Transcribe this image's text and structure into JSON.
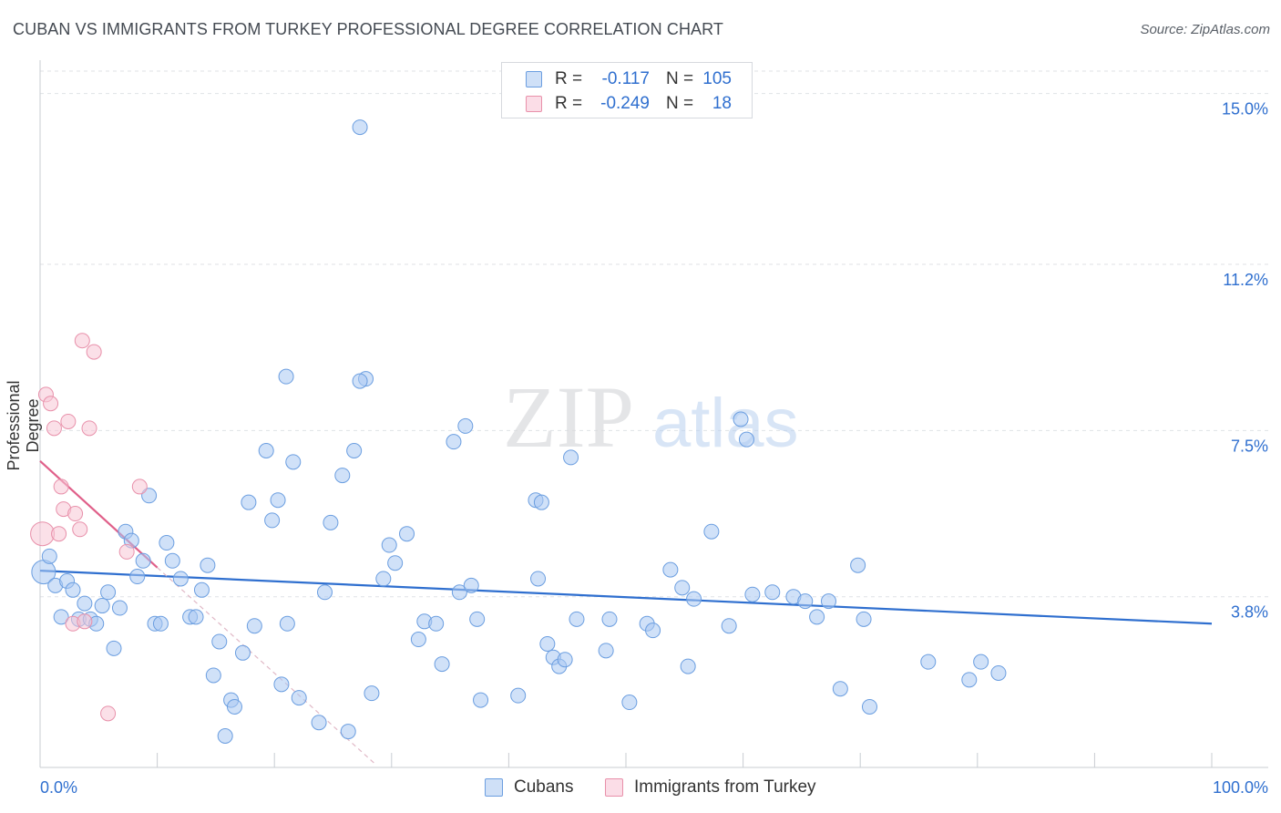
{
  "title": "CUBAN VS IMMIGRANTS FROM TURKEY PROFESSIONAL DEGREE CORRELATION CHART",
  "source": "Source: ZipAtlas.com",
  "watermark": {
    "zip": "ZIP",
    "atlas": "atlas"
  },
  "legend": {
    "series": [
      {
        "r_label": "R =",
        "r_value": "-0.117",
        "n_label": "N =",
        "n_value": "105",
        "color": "#a9c8f2",
        "border": "#6b9ee0"
      },
      {
        "r_label": "R =",
        "r_value": "-0.249",
        "n_label": "N =",
        "n_value": "18",
        "color": "#f8c6d6",
        "border": "#e890aa"
      }
    ]
  },
  "bottom_legend": [
    {
      "label": "Cubans",
      "color": "#a9c8f2",
      "border": "#6b9ee0"
    },
    {
      "label": "Immigrants from Turkey",
      "color": "#f8c6d6",
      "border": "#e890aa"
    }
  ],
  "chart_data": {
    "type": "scatter",
    "title": "CUBAN VS IMMIGRANTS FROM TURKEY PROFESSIONAL DEGREE CORRELATION CHART",
    "xlabel": "",
    "ylabel": "Professional Degree",
    "xlim": [
      0,
      100
    ],
    "ylim": [
      0,
      15.5
    ],
    "x_tick_labels": [
      "0.0%",
      "100.0%"
    ],
    "y_ticks": [
      3.8,
      7.5,
      11.2,
      15.0
    ],
    "y_tick_labels": [
      "3.8%",
      "7.5%",
      "11.2%",
      "15.0%"
    ],
    "grid": true,
    "legend_position": "top-center",
    "series": [
      {
        "name": "Cubans",
        "color": "#a9c8f2",
        "stroke": "#6b9ee0",
        "trend": {
          "x": [
            0,
            100
          ],
          "y": [
            4.38,
            3.2
          ]
        },
        "points": [
          [
            0.3,
            4.35
          ],
          [
            0.8,
            4.7
          ],
          [
            1.3,
            4.05
          ],
          [
            2.3,
            4.15
          ],
          [
            1.8,
            3.35
          ],
          [
            2.8,
            3.95
          ],
          [
            3.3,
            3.3
          ],
          [
            3.8,
            3.65
          ],
          [
            4.3,
            3.3
          ],
          [
            4.8,
            3.2
          ],
          [
            5.3,
            3.6
          ],
          [
            5.8,
            3.9
          ],
          [
            6.3,
            2.65
          ],
          [
            6.8,
            3.55
          ],
          [
            7.3,
            5.25
          ],
          [
            7.8,
            5.05
          ],
          [
            8.3,
            4.25
          ],
          [
            8.8,
            4.6
          ],
          [
            9.3,
            6.05
          ],
          [
            9.8,
            3.2
          ],
          [
            10.3,
            3.2
          ],
          [
            10.8,
            5.0
          ],
          [
            11.3,
            4.6
          ],
          [
            12.0,
            4.2
          ],
          [
            12.8,
            3.35
          ],
          [
            13.3,
            3.35
          ],
          [
            13.8,
            3.95
          ],
          [
            14.3,
            4.5
          ],
          [
            14.8,
            2.05
          ],
          [
            15.3,
            2.8
          ],
          [
            15.8,
            0.7
          ],
          [
            16.3,
            1.5
          ],
          [
            16.6,
            1.35
          ],
          [
            17.3,
            2.55
          ],
          [
            18.3,
            3.15
          ],
          [
            17.8,
            5.9
          ],
          [
            19.3,
            7.05
          ],
          [
            19.8,
            5.5
          ],
          [
            20.3,
            5.95
          ],
          [
            20.6,
            1.85
          ],
          [
            21.0,
            8.7
          ],
          [
            21.6,
            6.8
          ],
          [
            21.1,
            3.2
          ],
          [
            22.1,
            1.55
          ],
          [
            23.8,
            1.0
          ],
          [
            24.8,
            5.45
          ],
          [
            24.3,
            3.9
          ],
          [
            25.8,
            6.5
          ],
          [
            26.3,
            0.8
          ],
          [
            26.8,
            7.05
          ],
          [
            27.8,
            8.65
          ],
          [
            27.3,
            14.25
          ],
          [
            28.3,
            1.65
          ],
          [
            29.3,
            4.2
          ],
          [
            29.8,
            4.95
          ],
          [
            30.3,
            4.55
          ],
          [
            31.3,
            5.2
          ],
          [
            32.3,
            2.85
          ],
          [
            32.8,
            3.25
          ],
          [
            33.8,
            3.2
          ],
          [
            34.3,
            2.3
          ],
          [
            35.3,
            7.25
          ],
          [
            35.8,
            3.9
          ],
          [
            36.3,
            7.6
          ],
          [
            36.8,
            4.05
          ],
          [
            37.3,
            3.3
          ],
          [
            37.6,
            1.5
          ],
          [
            42.3,
            5.95
          ],
          [
            42.8,
            5.9
          ],
          [
            43.3,
            2.75
          ],
          [
            43.8,
            2.45
          ],
          [
            44.3,
            2.25
          ],
          [
            44.8,
            2.4
          ],
          [
            45.8,
            3.3
          ],
          [
            45.3,
            6.9
          ],
          [
            48.6,
            3.3
          ],
          [
            50.3,
            1.45
          ],
          [
            51.8,
            3.2
          ],
          [
            52.3,
            3.05
          ],
          [
            53.8,
            4.4
          ],
          [
            54.8,
            4.0
          ],
          [
            55.3,
            2.25
          ],
          [
            55.8,
            3.75
          ],
          [
            57.3,
            5.25
          ],
          [
            58.8,
            3.15
          ],
          [
            59.8,
            7.75
          ],
          [
            60.3,
            7.3
          ],
          [
            60.8,
            3.85
          ],
          [
            62.5,
            3.9
          ],
          [
            64.3,
            3.8
          ],
          [
            65.3,
            3.7
          ],
          [
            66.3,
            3.35
          ],
          [
            67.3,
            3.7
          ],
          [
            68.3,
            1.75
          ],
          [
            69.8,
            4.5
          ],
          [
            70.8,
            1.35
          ],
          [
            70.3,
            3.3
          ],
          [
            75.8,
            2.35
          ],
          [
            79.3,
            1.95
          ],
          [
            80.3,
            2.35
          ],
          [
            81.8,
            2.1
          ],
          [
            48.3,
            2.6
          ],
          [
            40.8,
            1.6
          ],
          [
            27.3,
            8.6
          ],
          [
            42.5,
            4.2
          ]
        ]
      },
      {
        "name": "Immigrants from Turkey",
        "color": "#f8c6d6",
        "stroke": "#e890aa",
        "trend": {
          "x": [
            0,
            10
          ],
          "y": [
            6.82,
            4.45
          ]
        },
        "trend_extension": {
          "x": [
            10,
            28.5
          ],
          "y": [
            4.45,
            0.1
          ]
        },
        "points": [
          [
            0.2,
            5.2
          ],
          [
            0.5,
            8.3
          ],
          [
            0.9,
            8.1
          ],
          [
            1.2,
            7.55
          ],
          [
            1.6,
            5.2
          ],
          [
            1.8,
            6.25
          ],
          [
            2.0,
            5.75
          ],
          [
            2.4,
            7.7
          ],
          [
            2.8,
            3.2
          ],
          [
            3.0,
            5.65
          ],
          [
            3.4,
            5.3
          ],
          [
            3.6,
            9.5
          ],
          [
            3.8,
            3.25
          ],
          [
            4.2,
            7.55
          ],
          [
            4.6,
            9.25
          ],
          [
            5.8,
            1.2
          ],
          [
            7.4,
            4.8
          ],
          [
            8.5,
            6.25
          ]
        ]
      }
    ]
  }
}
